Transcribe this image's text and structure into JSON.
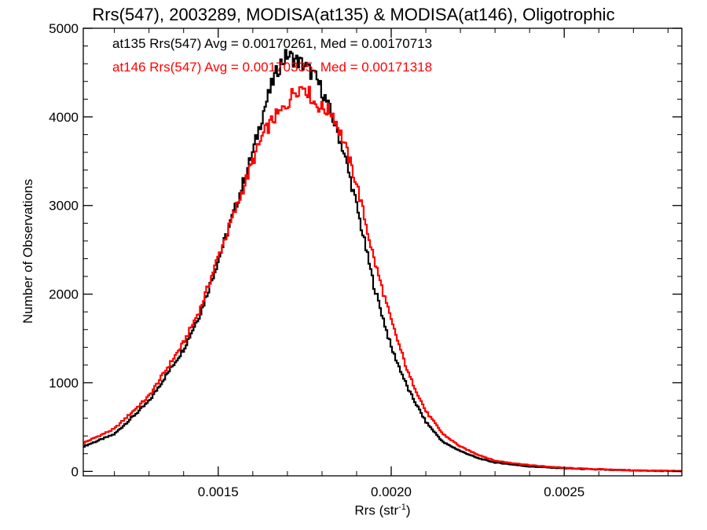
{
  "chart_data": {
    "type": "line",
    "title": "Rrs(547), 2003289, MODISA(at135) & MODISA(at146), Oligotrophic",
    "xlabel_main": "Rrs (str",
    "xlabel_sup": "-1",
    "xlabel_close": ")",
    "ylabel": "Number of Observations",
    "xlim": [
      0.00111,
      0.00284
    ],
    "ylim": [
      -50,
      5000
    ],
    "xticks": [
      0.0015,
      0.002,
      0.0025
    ],
    "xtick_labels": [
      "0.0015",
      "0.0020",
      "0.0025"
    ],
    "yticks": [
      0,
      1000,
      2000,
      3000,
      4000,
      5000
    ],
    "ytick_labels": [
      "0",
      "1000",
      "2000",
      "3000",
      "4000",
      "5000"
    ],
    "annotations": [
      "at135 Rrs(547) Avg = 0.00170261, Med = 0.00170713",
      "at146 Rrs(547) Avg = 0.00170335, Med = 0.00171318"
    ],
    "series": [
      {
        "color": "#000000",
        "x": [
          0.00111,
          0.0012,
          0.0013,
          0.0014,
          0.00145,
          0.0015,
          0.00155,
          0.0016,
          0.00163,
          0.00166,
          0.00168,
          0.0017,
          0.00172,
          0.00175,
          0.00178,
          0.0018,
          0.00183,
          0.00186,
          0.0019,
          0.00195,
          0.002,
          0.00205,
          0.0021,
          0.00215,
          0.0022,
          0.00225,
          0.0023,
          0.0024,
          0.0025,
          0.0026,
          0.0027,
          0.0028,
          0.00284
        ],
        "y": [
          280,
          420,
          790,
          1380,
          1800,
          2380,
          2980,
          3600,
          4050,
          4420,
          4600,
          4700,
          4650,
          4580,
          4450,
          4300,
          4000,
          3650,
          3000,
          2100,
          1400,
          920,
          560,
          330,
          230,
          150,
          100,
          55,
          35,
          20,
          10,
          4,
          2
        ]
      },
      {
        "color": "#ff0000",
        "x": [
          0.00111,
          0.0012,
          0.0013,
          0.0014,
          0.00145,
          0.0015,
          0.00155,
          0.0016,
          0.00163,
          0.00166,
          0.00168,
          0.0017,
          0.00172,
          0.00175,
          0.00178,
          0.0018,
          0.00183,
          0.00186,
          0.0019,
          0.00195,
          0.002,
          0.00205,
          0.0021,
          0.00215,
          0.0022,
          0.00225,
          0.0023,
          0.0024,
          0.0025,
          0.0026,
          0.0027,
          0.0028,
          0.00284
        ],
        "y": [
          320,
          480,
          850,
          1450,
          1850,
          2420,
          2950,
          3500,
          3800,
          3980,
          4050,
          4150,
          4300,
          4350,
          4150,
          4100,
          4050,
          3750,
          3250,
          2400,
          1700,
          1100,
          680,
          420,
          280,
          190,
          120,
          70,
          40,
          25,
          12,
          6,
          3
        ]
      }
    ],
    "grid": false,
    "legend": "none"
  }
}
